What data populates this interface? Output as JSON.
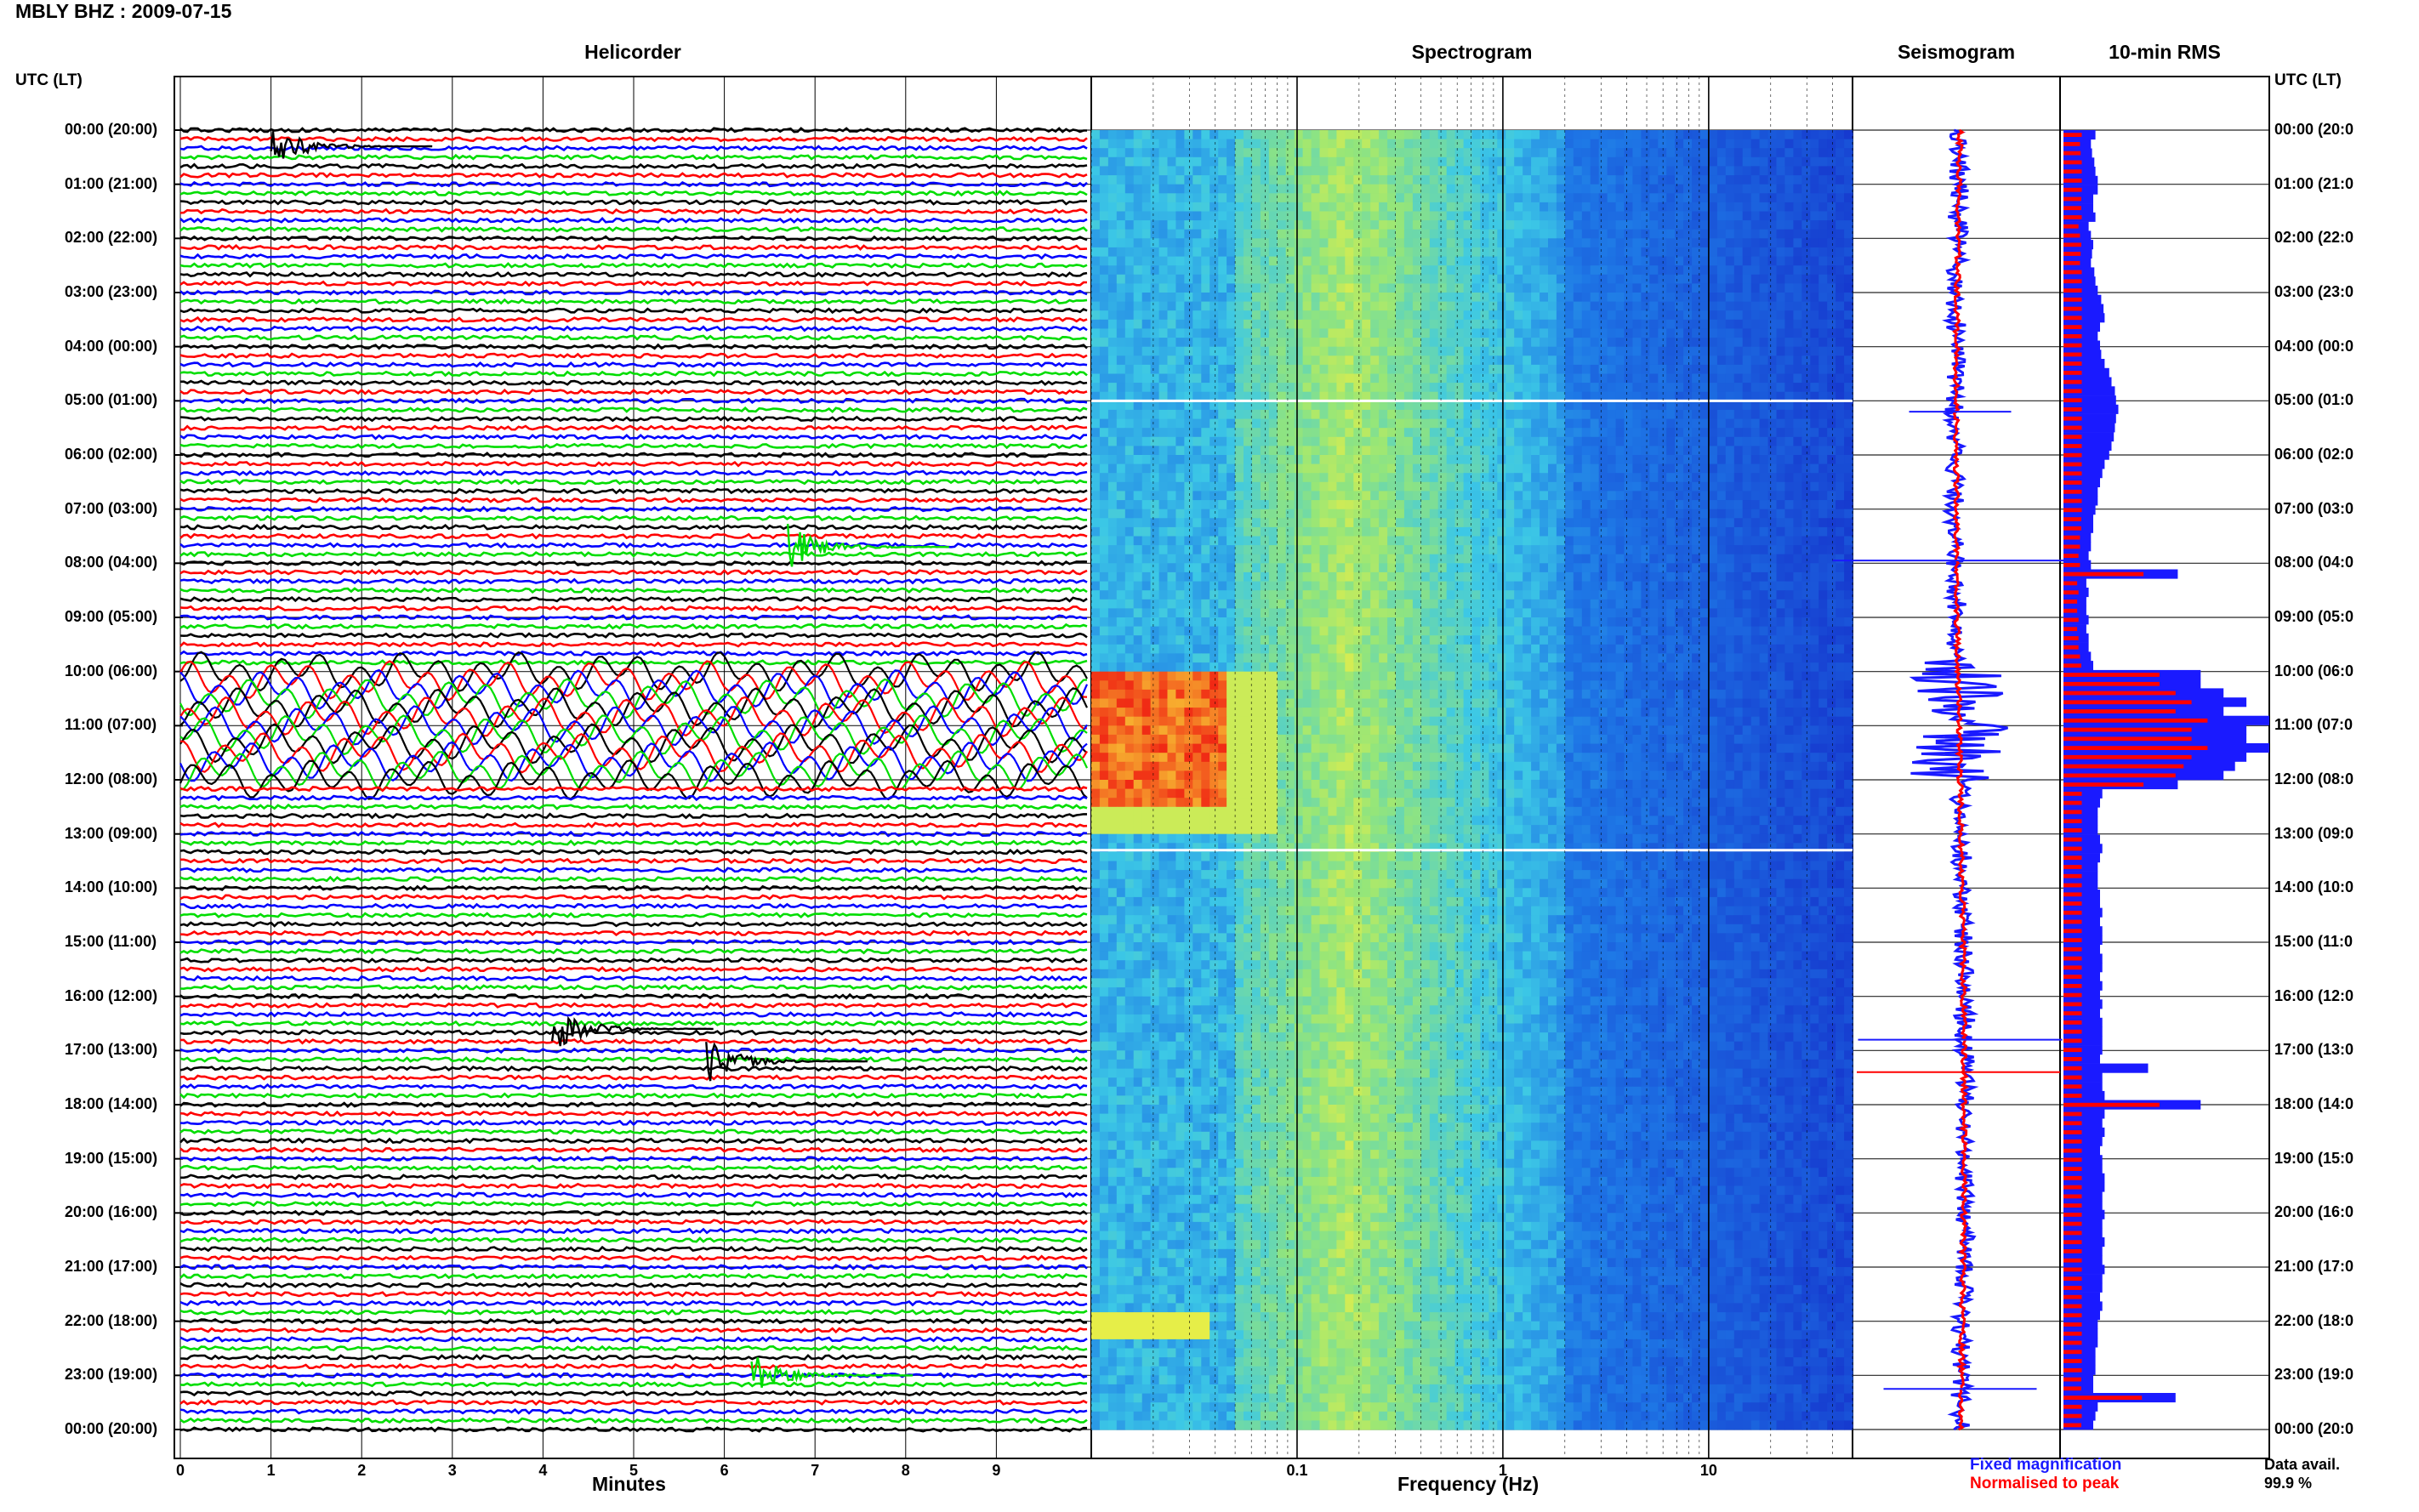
{
  "header": {
    "title": "MBLY BHZ : 2009-07-15"
  },
  "panels": {
    "helicorder": "Helicorder",
    "spectrogram": "Spectrogram",
    "seismogram": "Seismogram",
    "rms": "10-min RMS"
  },
  "left_axis_title": "UTC (LT)",
  "right_axis_title": "UTC (LT)",
  "time_labels_left": [
    "00:00 (20:00)",
    "01:00 (21:00)",
    "02:00 (22:00)",
    "03:00 (23:00)",
    "04:00 (00:00)",
    "05:00 (01:00)",
    "06:00 (02:00)",
    "07:00 (03:00)",
    "08:00 (04:00)",
    "09:00 (05:00)",
    "10:00 (06:00)",
    "11:00 (07:00)",
    "12:00 (08:00)",
    "13:00 (09:00)",
    "14:00 (10:00)",
    "15:00 (11:00)",
    "16:00 (12:00)",
    "17:00 (13:00)",
    "18:00 (14:00)",
    "19:00 (15:00)",
    "20:00 (16:00)",
    "21:00 (17:00)",
    "22:00 (18:00)",
    "23:00 (19:00)",
    "00:00 (20:00)"
  ],
  "time_labels_right": [
    "00:00 (20:0",
    "01:00 (21:0",
    "02:00 (22:0",
    "03:00 (23:0",
    "04:00 (00:0",
    "05:00 (01:0",
    "06:00 (02:0",
    "07:00 (03:0",
    "08:00 (04:0",
    "09:00 (05:0",
    "10:00 (06:0",
    "11:00 (07:0",
    "12:00 (08:0",
    "13:00 (09:0",
    "14:00 (10:0",
    "15:00 (11:0",
    "16:00 (12:0",
    "17:00 (13:0",
    "18:00 (14:0",
    "19:00 (15:0",
    "20:00 (16:0",
    "21:00 (17:0",
    "22:00 (18:0",
    "23:00 (19:0",
    "00:00 (20:0"
  ],
  "legend": {
    "fixed": "Fixed magnification",
    "normalised": "Normalised to peak"
  },
  "data_avail": {
    "label": "Data avail.",
    "value": "99.9 %"
  },
  "colors": {
    "helicorder_traces": [
      "#000000",
      "#ff0000",
      "#0000ff",
      "#00dd00"
    ],
    "seis_fixed": "#1a1aff",
    "seis_norm": "#ff0000",
    "rms_fixed": "#1a1aff",
    "rms_norm": "#ff0000"
  },
  "chart_data": [
    {
      "type": "line",
      "panel": "helicorder",
      "xlabel": "Minutes",
      "x_ticks": [
        "0",
        "1",
        "2",
        "3",
        "4",
        "5",
        "6",
        "7",
        "8",
        "9"
      ],
      "xlim": [
        0,
        10
      ],
      "lines_per_hour": 6,
      "hours": 24,
      "events": [
        {
          "utc_hour": 0.3,
          "minute": 1.0,
          "note": "small burst"
        },
        {
          "utc_hour": 7.7,
          "minute": 6.7,
          "note": "event"
        },
        {
          "utc_hour": 10.0,
          "minute": 0,
          "note": "large long-period oscillation 10:00-12:00"
        },
        {
          "utc_hour": 16.6,
          "minute": 4.1,
          "note": "event"
        },
        {
          "utc_hour": 17.2,
          "minute": 5.8,
          "note": "event"
        },
        {
          "utc_hour": 23.0,
          "minute": 6.3,
          "note": "event"
        }
      ]
    },
    {
      "type": "heatmap",
      "panel": "spectrogram",
      "xlabel": "Frequency (Hz)",
      "x_scale": "log",
      "x_ticks": [
        "0.1",
        "1",
        "10"
      ],
      "xlim": [
        0.01,
        50
      ],
      "description_bands": "low frequency energy <0.1 Hz strong 10:00-13:00 UTC"
    },
    {
      "type": "area",
      "panel": "seismogram",
      "series": [
        {
          "name": "Fixed magnification"
        },
        {
          "name": "Normalised to peak"
        }
      ]
    },
    {
      "type": "bar",
      "panel": "rms",
      "series": [
        {
          "name": "Fixed magnification",
          "values": [
            0.28,
            0.24,
            0.25,
            0.27,
            0.28,
            0.3,
            0.3,
            0.26,
            0.26,
            0.28,
            0.22,
            0.24,
            0.26,
            0.25,
            0.24,
            0.27,
            0.28,
            0.3,
            0.33,
            0.35,
            0.36,
            0.32,
            0.3,
            0.32,
            0.33,
            0.36,
            0.4,
            0.42,
            0.45,
            0.46,
            0.48,
            0.46,
            0.45,
            0.44,
            0.42,
            0.4,
            0.36,
            0.34,
            0.32,
            0.3,
            0.3,
            0.28,
            0.26,
            0.26,
            0.24,
            0.24,
            0.22,
            0.24,
            1.0,
            0.2,
            0.22,
            0.2,
            0.2,
            0.22,
            0.2,
            0.22,
            0.22,
            0.24,
            0.26,
            1.2,
            1.2,
            1.4,
            1.6,
            1.4,
            1.8,
            1.6,
            1.6,
            1.8,
            1.6,
            1.5,
            1.4,
            1.0,
            0.34,
            0.32,
            0.3,
            0.3,
            0.3,
            0.32,
            0.34,
            0.32,
            0.3,
            0.3,
            0.3,
            0.32,
            0.32,
            0.34,
            0.32,
            0.34,
            0.34,
            0.32,
            0.34,
            0.34,
            0.32,
            0.34,
            0.32,
            0.34,
            0.32,
            0.34,
            0.34,
            0.34,
            0.34,
            0.32,
            0.74,
            0.34,
            0.34,
            0.36,
            1.2,
            0.36,
            0.34,
            0.36,
            0.34,
            0.32,
            0.34,
            0.34,
            0.36,
            0.36,
            0.34,
            0.34,
            0.36,
            0.34,
            0.34,
            0.36,
            0.34,
            0.34,
            0.36,
            0.34,
            0.34,
            0.32,
            0.34,
            0.32,
            0.3,
            0.3,
            0.3,
            0.28,
            0.28,
            0.28,
            0.26,
            0.26,
            0.98,
            0.3,
            0.28,
            0.26
          ]
        },
        {
          "name": "Normalised to peak"
        }
      ]
    }
  ]
}
